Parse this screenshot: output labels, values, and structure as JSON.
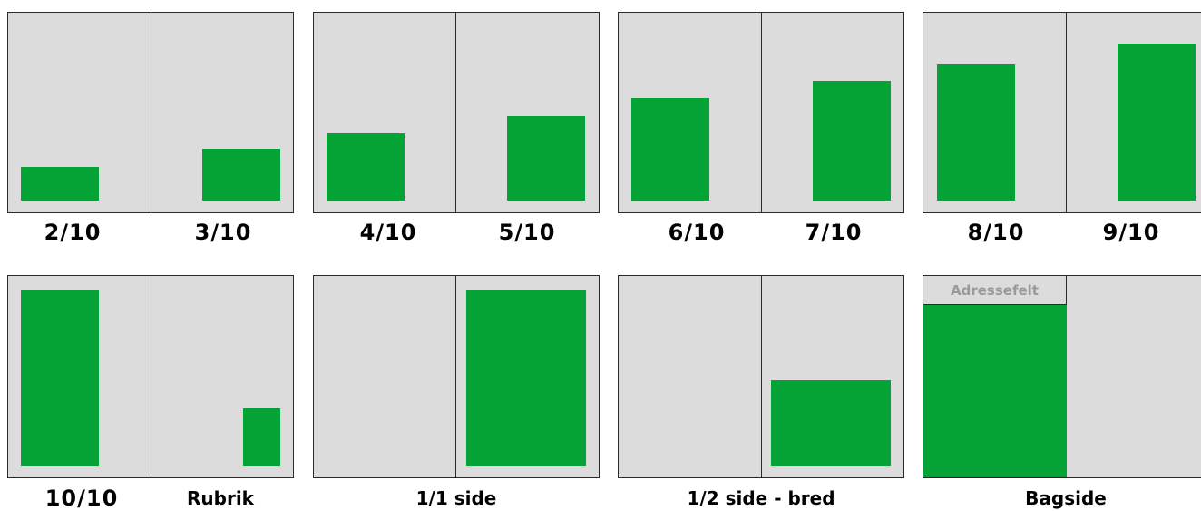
{
  "colors": {
    "page": "#dcdcdc",
    "border": "#2a2a2a",
    "ad": "#05a336",
    "address_text": "#9a9a9a"
  },
  "labels": {
    "l_2_10": "2/10",
    "l_3_10": "3/10",
    "l_4_10": "4/10",
    "l_5_10": "5/10",
    "l_6_10": "6/10",
    "l_7_10": "7/10",
    "l_8_10": "8/10",
    "l_9_10": "9/10",
    "l_10_10": "10/10",
    "rubrik": "Rubrik",
    "one_one_side": "1/1 side",
    "half_side_bred": "1/2 side - bred",
    "bagside": "Bagside",
    "adressefelt": "Adressefelt"
  }
}
